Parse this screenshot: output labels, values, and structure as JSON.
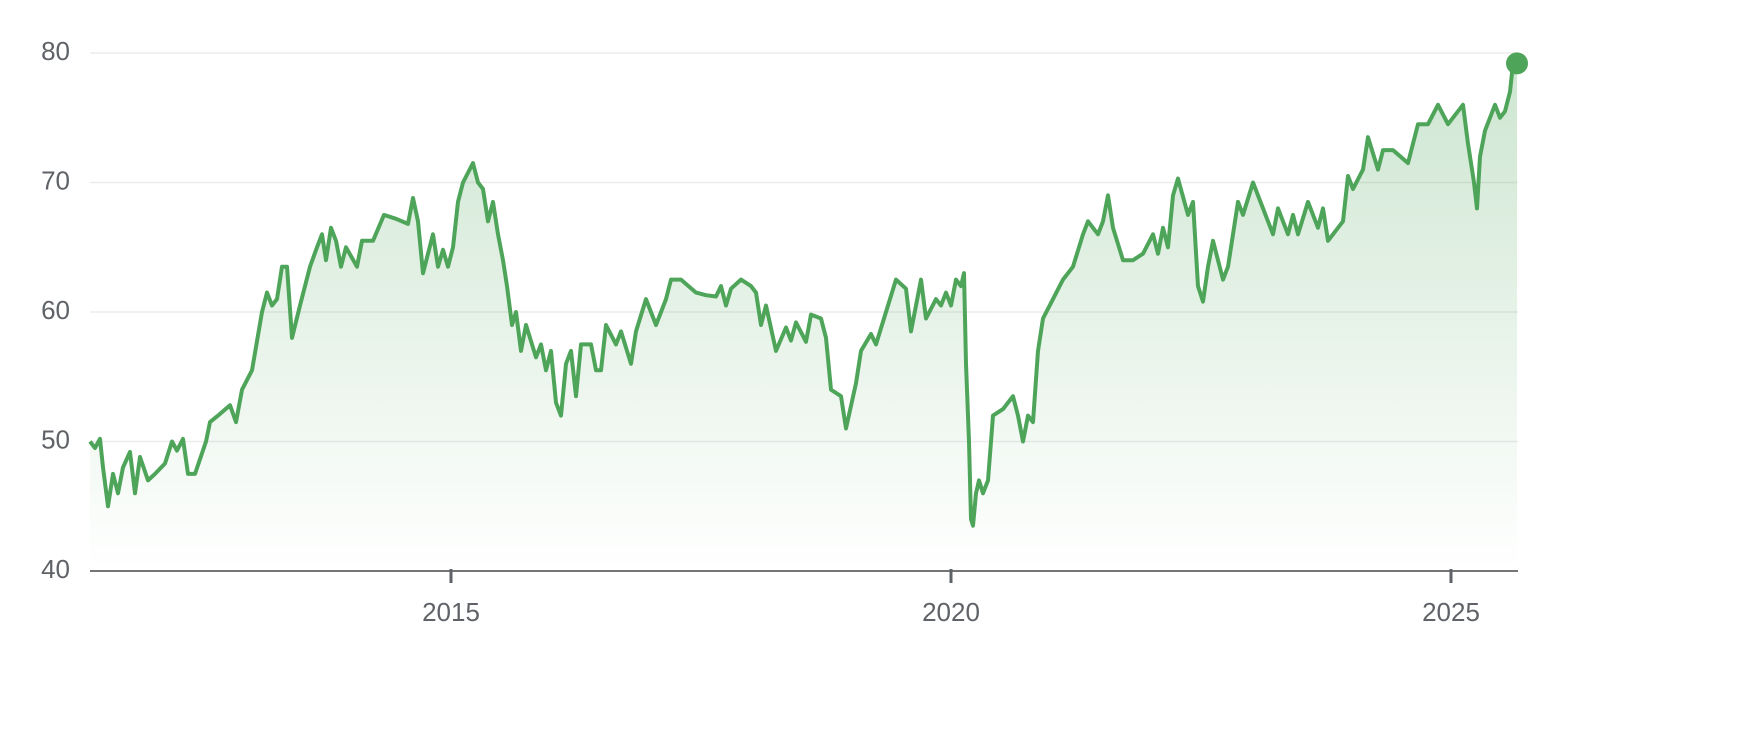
{
  "chart_data": {
    "type": "line",
    "color": "#4ea55a",
    "grid": true,
    "xlim": [
      2011.39,
      2025.67
    ],
    "xticks": [
      2015,
      2020,
      2025
    ],
    "ylim": [
      40,
      80
    ],
    "yticks": [
      40,
      50,
      60,
      70,
      80
    ],
    "x": [
      2011.39,
      2011.44,
      2011.49,
      2011.52,
      2011.57,
      2011.62,
      2011.67,
      2011.72,
      2011.79,
      2011.84,
      2011.89,
      2011.97,
      2012.04,
      2012.14,
      2012.21,
      2012.26,
      2012.32,
      2012.37,
      2012.44,
      2012.55,
      2012.59,
      2012.67,
      2012.79,
      2012.85,
      2012.91,
      2013.01,
      2013.11,
      2013.16,
      2013.21,
      2013.26,
      2013.31,
      2013.36,
      2013.41,
      2013.49,
      2013.59,
      2013.66,
      2013.71,
      2013.75,
      2013.8,
      2013.85,
      2013.9,
      2013.95,
      2014.06,
      2014.11,
      2014.22,
      2014.33,
      2014.45,
      2014.57,
      2014.62,
      2014.67,
      2014.72,
      2014.82,
      2014.87,
      2014.92,
      2014.97,
      2015.02,
      2015.07,
      2015.12,
      2015.22,
      2015.27,
      2015.32,
      2015.37,
      2015.42,
      2015.47,
      2015.52,
      2015.56,
      2015.61,
      2015.65,
      2015.7,
      2015.75,
      2015.85,
      2015.9,
      2015.95,
      2016.0,
      2016.05,
      2016.1,
      2016.15,
      2016.2,
      2016.25,
      2016.3,
      2016.4,
      2016.45,
      2016.5,
      2016.55,
      2016.65,
      2016.7,
      2016.8,
      2016.85,
      2016.95,
      2017.05,
      2017.15,
      2017.2,
      2017.3,
      2017.45,
      2017.55,
      2017.65,
      2017.7,
      2017.75,
      2017.8,
      2017.9,
      2018.0,
      2018.05,
      2018.1,
      2018.15,
      2018.25,
      2018.35,
      2018.4,
      2018.45,
      2018.55,
      2018.6,
      2018.7,
      2018.75,
      2018.8,
      2018.9,
      2018.95,
      2019.05,
      2019.1,
      2019.2,
      2019.25,
      2019.35,
      2019.45,
      2019.55,
      2019.6,
      2019.7,
      2019.75,
      2019.85,
      2019.9,
      2019.95,
      2020.0,
      2020.05,
      2020.1,
      2020.13,
      2020.15,
      2020.18,
      2020.2,
      2020.22,
      2020.25,
      2020.28,
      2020.32,
      2020.37,
      2020.42,
      2020.52,
      2020.62,
      2020.67,
      2020.72,
      2020.77,
      2020.82,
      2020.87,
      2020.92,
      2021.02,
      2021.12,
      2021.22,
      2021.32,
      2021.37,
      2021.47,
      2021.52,
      2021.57,
      2021.62,
      2021.72,
      2021.82,
      2021.92,
      2022.02,
      2022.07,
      2022.12,
      2022.17,
      2022.22,
      2022.27,
      2022.37,
      2022.42,
      2022.47,
      2022.52,
      2022.57,
      2022.62,
      2022.72,
      2022.77,
      2022.87,
      2022.92,
      2023.02,
      2023.12,
      2023.22,
      2023.27,
      2023.37,
      2023.42,
      2023.47,
      2023.57,
      2023.67,
      2023.72,
      2023.77,
      2023.87,
      2023.92,
      2023.97,
      2024.02,
      2024.12,
      2024.17,
      2024.27,
      2024.32,
      2024.42,
      2024.57,
      2024.67,
      2024.77,
      2024.87,
      2024.97,
      2025.12,
      2025.17,
      2025.23,
      2025.26,
      2025.29,
      2025.34,
      2025.44,
      2025.49,
      2025.54,
      2025.59,
      2025.62,
      2025.66
    ],
    "values": [
      50,
      49.5,
      50.2,
      48,
      45,
      47.5,
      46,
      48,
      49.2,
      46,
      48.8,
      47,
      47.5,
      48.3,
      50,
      49.3,
      50.2,
      47.5,
      47.5,
      50,
      51.5,
      52,
      52.8,
      51.5,
      54,
      55.5,
      60,
      61.5,
      60.5,
      61,
      63.5,
      63.5,
      58,
      60.5,
      63.5,
      65,
      66,
      64,
      66.5,
      65.5,
      63.5,
      65,
      63.5,
      65.5,
      65.5,
      67.5,
      67.2,
      66.8,
      68.8,
      67,
      63,
      66,
      63.5,
      64.8,
      63.5,
      65,
      68.5,
      70,
      71.5,
      70,
      69.5,
      67,
      68.5,
      66,
      64,
      62,
      59,
      60,
      57,
      59,
      56.5,
      57.5,
      55.5,
      57,
      53,
      52,
      56,
      57,
      53.5,
      57.5,
      57.5,
      55.5,
      55.5,
      59,
      57.5,
      58.5,
      56,
      58.5,
      61,
      59,
      61,
      62.5,
      62.5,
      61.5,
      61.3,
      61.2,
      62,
      60.5,
      61.8,
      62.5,
      62,
      61.5,
      59,
      60.5,
      57,
      58.8,
      57.8,
      59.2,
      57.7,
      59.8,
      59.5,
      58,
      54,
      53.5,
      51,
      54.5,
      57,
      58.3,
      57.5,
      60,
      62.5,
      61.8,
      58.5,
      62.5,
      59.5,
      61,
      60.5,
      61.5,
      60.5,
      62.5,
      62,
      63,
      56,
      50,
      44,
      43.5,
      46,
      47,
      46,
      47,
      52,
      52.5,
      53.5,
      52,
      50,
      52,
      51.5,
      57,
      59.5,
      61,
      62.5,
      63.5,
      66,
      67,
      66,
      67,
      69,
      66.5,
      64,
      64,
      64.5,
      66,
      64.5,
      66.5,
      65,
      69,
      70.3,
      67.5,
      68.5,
      62,
      60.8,
      63.5,
      65.5,
      62.5,
      63.5,
      68.5,
      67.5,
      70,
      68,
      66,
      68,
      66,
      67.5,
      66,
      68.5,
      66.5,
      68,
      65.5,
      66.5,
      67,
      70.5,
      69.5,
      71,
      73.5,
      71,
      72.5,
      72.5,
      71.5,
      74.5,
      74.5,
      76,
      74.5,
      76,
      73,
      70,
      68,
      72,
      74,
      76,
      75,
      75.5,
      77,
      79.2,
      79.2
    ]
  }
}
